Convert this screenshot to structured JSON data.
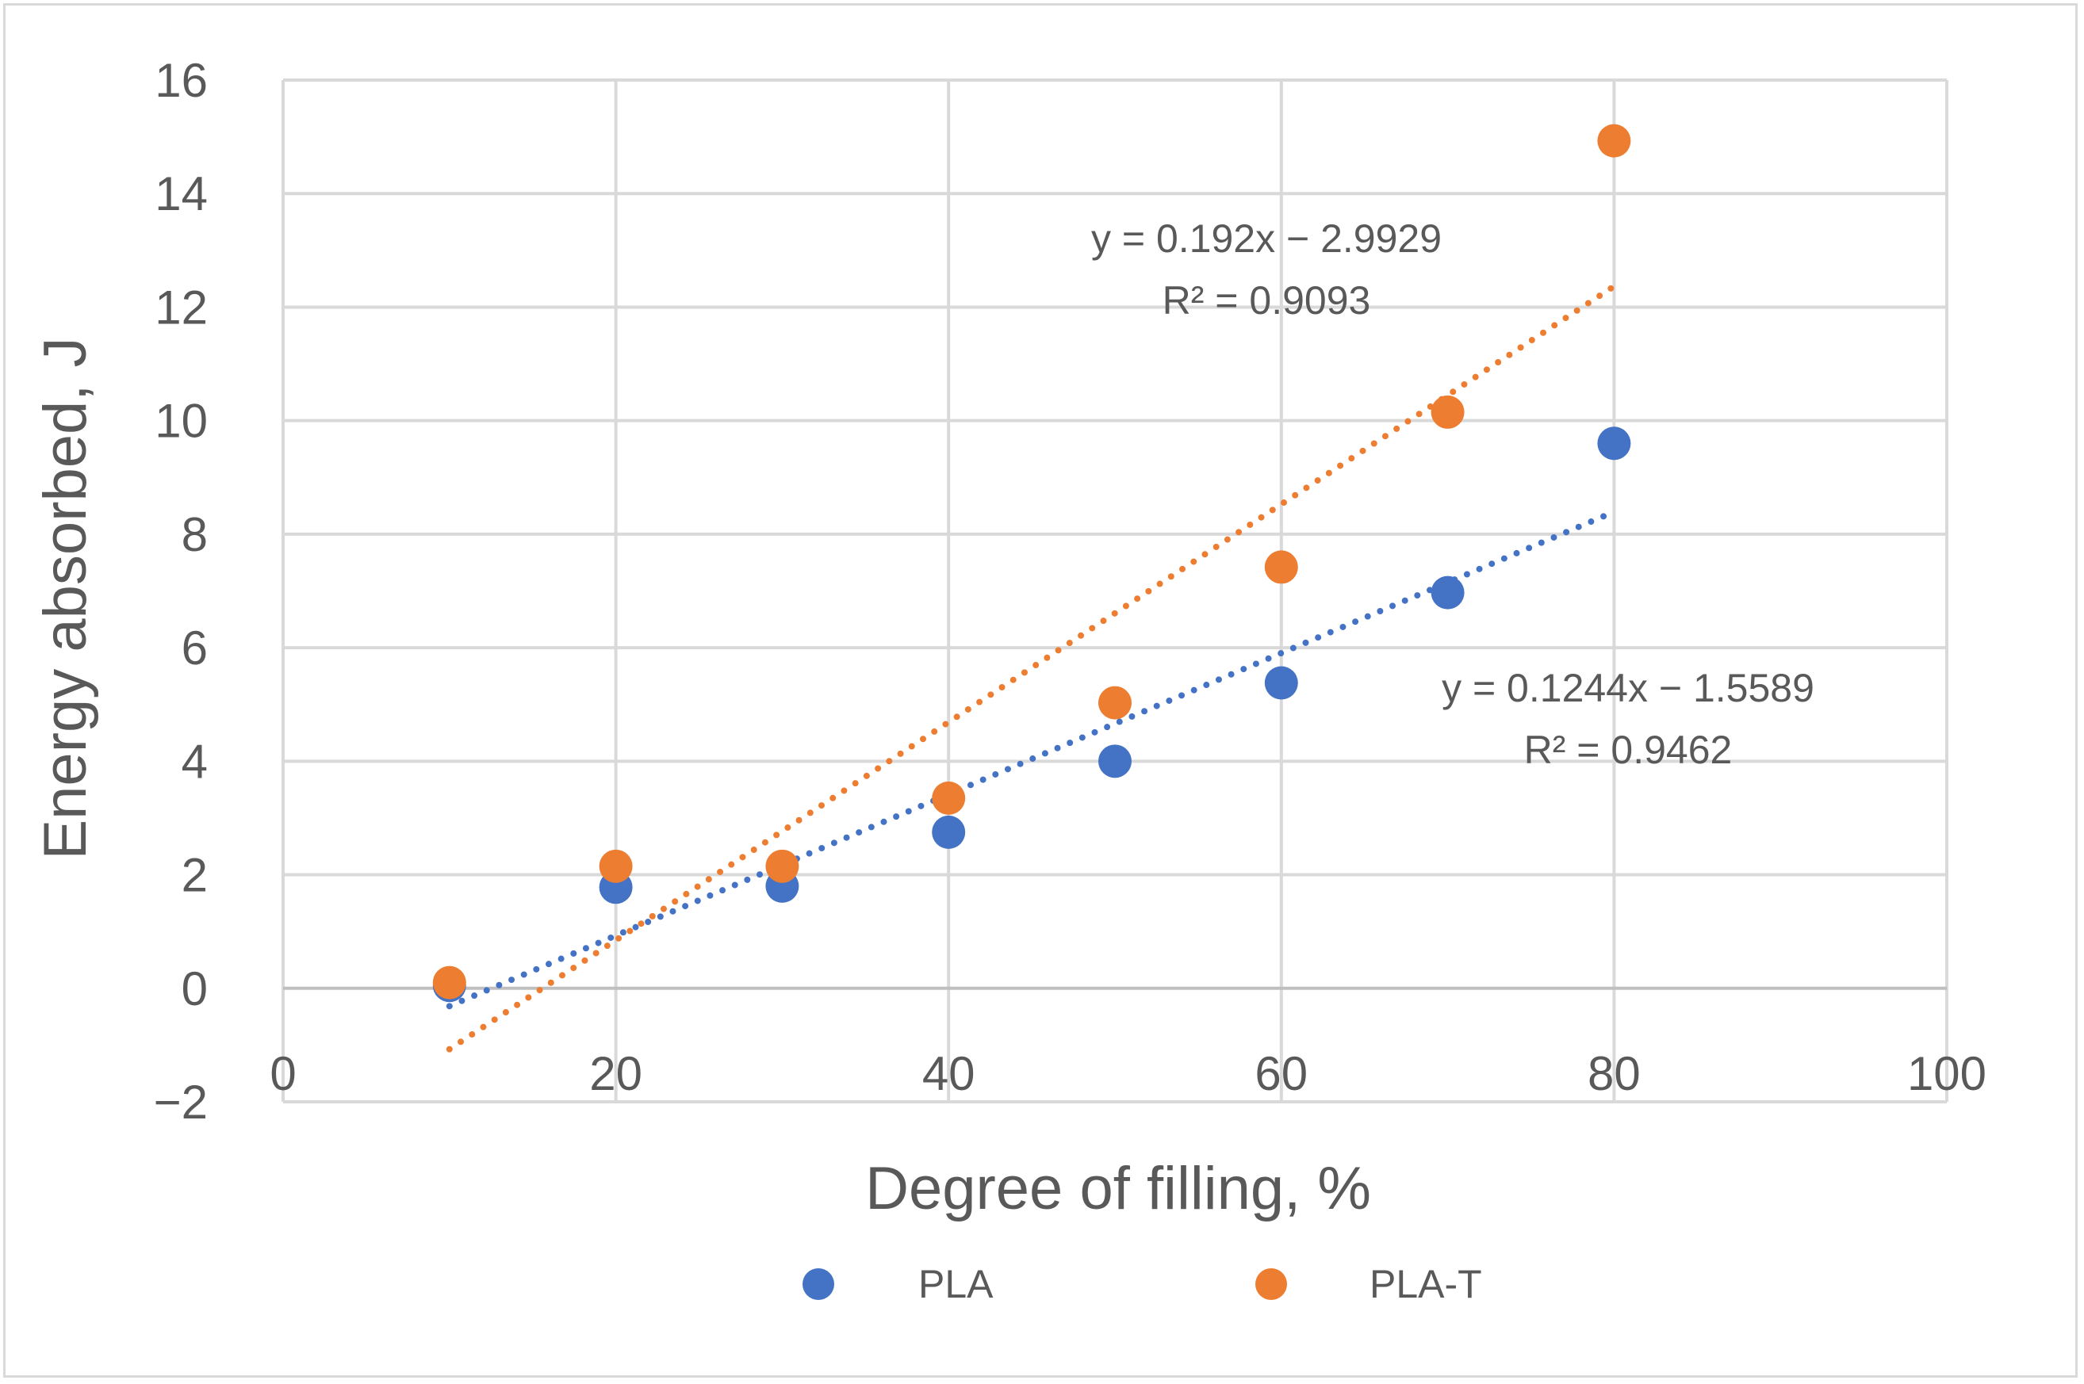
{
  "chart_data": {
    "type": "scatter",
    "title": "",
    "xlabel": "Degree of filling, %",
    "ylabel": "Energy absorbed, J",
    "xlim": [
      0,
      100
    ],
    "ylim": [
      -2,
      16
    ],
    "x_ticks": [
      0,
      20,
      40,
      60,
      80,
      100
    ],
    "y_ticks": [
      -2,
      0,
      2,
      4,
      6,
      8,
      10,
      12,
      14,
      16
    ],
    "x_tick_labels": [
      "0",
      "20",
      "40",
      "60",
      "80",
      "100"
    ],
    "y_tick_labels": [
      "−2",
      "0",
      "2",
      "4",
      "6",
      "8",
      "10",
      "12",
      "14",
      "16"
    ],
    "grid": true,
    "legend_position": "bottom",
    "series": [
      {
        "name": "PLA",
        "color": "#4472c4",
        "x": [
          10,
          20,
          30,
          40,
          50,
          60,
          70,
          80
        ],
        "y": [
          0.05,
          1.78,
          1.8,
          2.75,
          4.0,
          5.38,
          6.97,
          9.6
        ],
        "trendline": {
          "type": "linear",
          "style": "dotted",
          "slope": 0.1244,
          "intercept": -1.5589,
          "x_range": [
            10,
            80
          ],
          "equation": "y = 0.1244x − 1.5589",
          "r2": "R² = 0.9462"
        }
      },
      {
        "name": "PLA-T",
        "color": "#ed7d31",
        "x": [
          10,
          20,
          30,
          40,
          50,
          60,
          70,
          80
        ],
        "y": [
          0.1,
          2.15,
          2.15,
          3.35,
          5.03,
          7.42,
          10.15,
          14.93
        ],
        "trendline": {
          "type": "linear",
          "style": "dotted",
          "slope": 0.192,
          "intercept": -2.9929,
          "x_range": [
            10,
            80
          ],
          "equation": "y = 0.192x − 2.9929",
          "r2": "R² = 0.9093"
        }
      }
    ]
  }
}
